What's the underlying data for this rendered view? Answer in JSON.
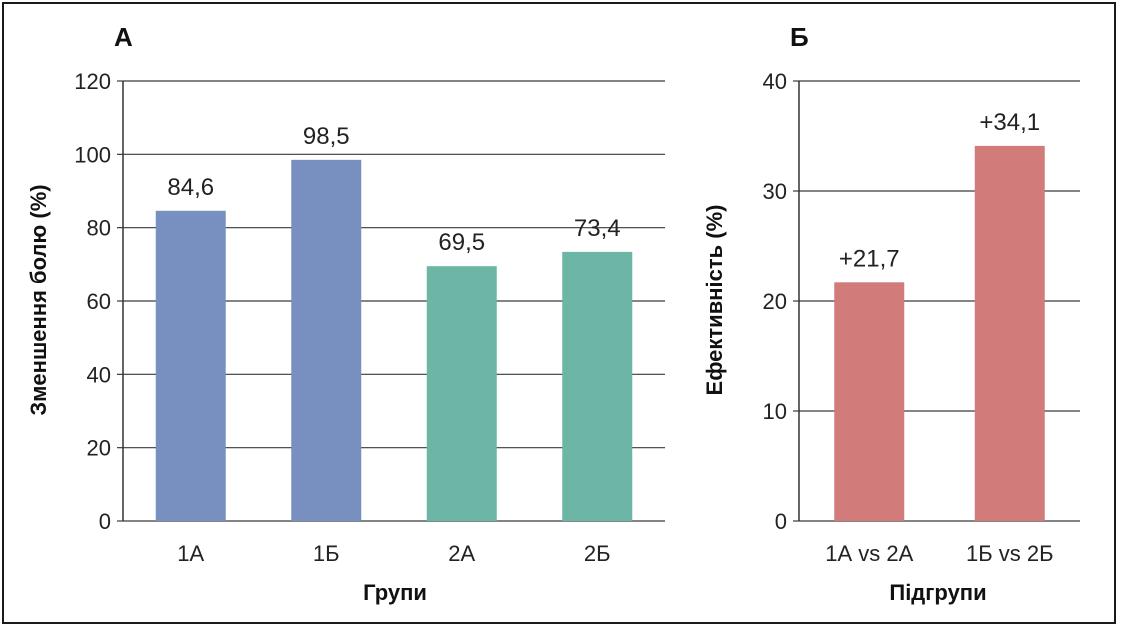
{
  "chart_data": [
    {
      "type": "bar",
      "panel_label": "А",
      "categories": [
        "1А",
        "1Б",
        "2А",
        "2Б"
      ],
      "values": [
        84.6,
        98.5,
        69.5,
        73.4
      ],
      "value_labels": [
        "84,6",
        "98,5",
        "69,5",
        "73,4"
      ],
      "colors": [
        "#7890c0",
        "#7890c0",
        "#6db5a5",
        "#6db5a5"
      ],
      "xlabel": "Групи",
      "ylabel": "Зменшення болю (%)",
      "ylim": [
        0,
        120
      ],
      "yticks": [
        "0",
        "20",
        "40",
        "60",
        "80",
        "100",
        "120"
      ],
      "grid": true
    },
    {
      "type": "bar",
      "panel_label": "Б",
      "categories": [
        "1А vs 2А",
        "1Б vs 2Б"
      ],
      "values": [
        21.7,
        34.1
      ],
      "value_labels": [
        "+21,7",
        "+34,1"
      ],
      "colors": [
        "#d17b7b",
        "#d17b7b"
      ],
      "xlabel": "Підгрупи",
      "ylabel": "Ефективність (%)",
      "ylim": [
        0,
        40
      ],
      "yticks": [
        "0",
        "10",
        "20",
        "30",
        "40"
      ],
      "grid": true
    }
  ]
}
